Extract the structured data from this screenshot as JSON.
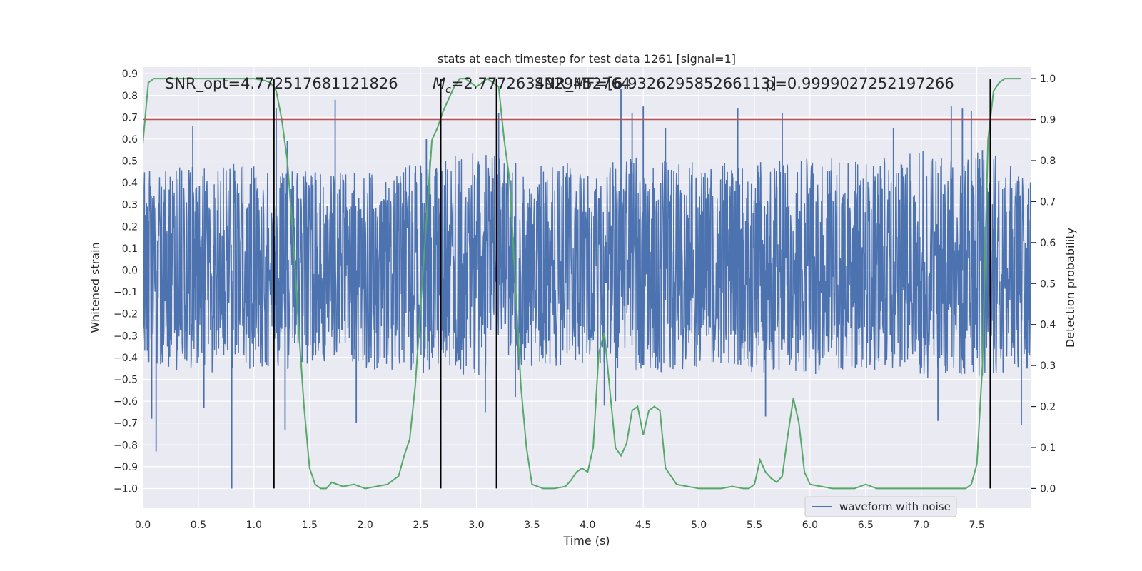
{
  "chart_data": {
    "type": "line",
    "title": "stats at each timestep for test data 1261 [signal=1]",
    "xlabel": "Time (s)",
    "ylabel": "Whitened strain",
    "y2label": "Detection probability",
    "xlim": [
      0.0,
      7.99
    ],
    "ylim": [
      -1.09,
      0.93
    ],
    "y2lim": [
      -0.048,
      1.028
    ],
    "xticks": [
      "0.0",
      "0.5",
      "1.0",
      "1.5",
      "2.0",
      "2.5",
      "3.0",
      "3.5",
      "4.0",
      "4.5",
      "5.0",
      "5.5",
      "6.0",
      "6.5",
      "7.0",
      "7.5"
    ],
    "yticks": [
      "0.9",
      "0.8",
      "0.7",
      "0.6",
      "0.5",
      "0.4",
      "0.3",
      "0.2",
      "0.1",
      "0.0",
      "−0.1",
      "−0.2",
      "−0.3",
      "−0.4",
      "−0.5",
      "−0.6",
      "−0.7",
      "−0.8",
      "−0.9",
      "−1.0"
    ],
    "y2ticks": [
      "0.0",
      "0.1",
      "0.2",
      "0.3",
      "0.4",
      "0.5",
      "0.6",
      "0.7",
      "0.8",
      "0.9",
      "1.0"
    ],
    "grid": true,
    "legend": {
      "position": "lower-right",
      "entries": [
        "waveform with noise"
      ]
    },
    "annotations": {
      "snr_opt": "SNR_opt=4.772517681121826",
      "mc_prefix": "M",
      "mc_sub": "c",
      "mc_value": "=2.7772634929452764",
      "snr_mf": "SNR_MF=[6.932629585266113]",
      "p": "p=0.9999027252197266"
    },
    "colors": {
      "background": "#eaeaf2",
      "waveform": "#4c72b0",
      "probability": "#55a868",
      "threshold": "#c44e52",
      "markers": "#000000"
    },
    "threshold_probability": 0.9,
    "vertical_markers_x": [
      1.18,
      2.68,
      3.18,
      7.62
    ],
    "waveform": {
      "name": "waveform with noise",
      "envelope_x": [
        0.0,
        0.5,
        1.0,
        1.5,
        2.0,
        2.5,
        3.0,
        3.5,
        4.0,
        4.5,
        5.0,
        5.5,
        6.0,
        6.5,
        7.0,
        7.5,
        7.99
      ],
      "envelope_upper": [
        0.45,
        0.5,
        0.48,
        0.46,
        0.45,
        0.5,
        0.55,
        0.48,
        0.5,
        0.52,
        0.5,
        0.5,
        0.52,
        0.5,
        0.55,
        0.55,
        0.48
      ],
      "envelope_lower": [
        -0.45,
        -0.48,
        -0.45,
        -0.45,
        -0.45,
        -0.48,
        -0.5,
        -0.45,
        -0.45,
        -0.48,
        -0.45,
        -0.47,
        -0.48,
        -0.45,
        -0.5,
        -0.5,
        -0.45
      ],
      "peaks": [
        [
          0.08,
          -0.68
        ],
        [
          0.12,
          -0.83
        ],
        [
          0.45,
          0.66
        ],
        [
          0.55,
          -0.63
        ],
        [
          0.8,
          -1.0
        ],
        [
          1.2,
          0.74
        ],
        [
          1.28,
          -0.73
        ],
        [
          1.3,
          0.59
        ],
        [
          1.73,
          0.78
        ],
        [
          1.92,
          -0.7
        ],
        [
          2.55,
          0.6
        ],
        [
          3.08,
          -0.65
        ],
        [
          3.2,
          0.72
        ],
        [
          3.35,
          -0.58
        ],
        [
          4.15,
          -0.62
        ],
        [
          4.25,
          -0.6
        ],
        [
          4.3,
          0.83
        ],
        [
          4.4,
          0.72
        ],
        [
          4.5,
          0.75
        ],
        [
          4.7,
          0.65
        ],
        [
          5.35,
          0.74
        ],
        [
          5.6,
          -0.67
        ],
        [
          5.75,
          0.72
        ],
        [
          6.75,
          0.65
        ],
        [
          7.15,
          -0.69
        ],
        [
          7.27,
          0.75
        ],
        [
          7.37,
          0.74
        ],
        [
          7.45,
          0.73
        ],
        [
          7.55,
          0.55
        ],
        [
          7.9,
          -0.71
        ]
      ]
    },
    "probability": {
      "name": "",
      "x": [
        0.0,
        0.05,
        0.1,
        0.15,
        0.2,
        0.3,
        0.5,
        0.8,
        1.0,
        1.1,
        1.15,
        1.2,
        1.25,
        1.3,
        1.35,
        1.4,
        1.45,
        1.5,
        1.55,
        1.6,
        1.65,
        1.7,
        1.8,
        1.9,
        2.0,
        2.1,
        2.2,
        2.3,
        2.35,
        2.4,
        2.45,
        2.5,
        2.55,
        2.6,
        2.65,
        2.7,
        2.75,
        2.8,
        2.85,
        2.9,
        2.95,
        3.0,
        3.05,
        3.1,
        3.15,
        3.2,
        3.25,
        3.3,
        3.35,
        3.4,
        3.45,
        3.5,
        3.6,
        3.7,
        3.8,
        3.85,
        3.9,
        3.95,
        4.0,
        4.05,
        4.1,
        4.15,
        4.2,
        4.25,
        4.3,
        4.35,
        4.4,
        4.45,
        4.5,
        4.55,
        4.6,
        4.65,
        4.7,
        4.8,
        4.9,
        5.0,
        5.1,
        5.2,
        5.3,
        5.4,
        5.45,
        5.5,
        5.55,
        5.6,
        5.65,
        5.7,
        5.75,
        5.8,
        5.85,
        5.9,
        5.95,
        6.0,
        6.1,
        6.2,
        6.3,
        6.4,
        6.5,
        6.6,
        6.7,
        6.8,
        6.9,
        7.0,
        7.1,
        7.2,
        7.3,
        7.4,
        7.45,
        7.5,
        7.55,
        7.6,
        7.65,
        7.7,
        7.75,
        7.8,
        7.85,
        7.9
      ],
      "y": [
        0.84,
        0.99,
        1.0,
        1.0,
        1.0,
        1.0,
        1.0,
        1.0,
        1.0,
        0.995,
        0.99,
        0.97,
        0.9,
        0.8,
        0.62,
        0.4,
        0.2,
        0.05,
        0.01,
        0.0,
        0.0,
        0.015,
        0.005,
        0.01,
        0.0,
        0.005,
        0.01,
        0.03,
        0.08,
        0.12,
        0.25,
        0.45,
        0.65,
        0.85,
        0.88,
        0.92,
        0.95,
        0.98,
        1.0,
        1.0,
        0.99,
        0.98,
        0.99,
        1.0,
        0.99,
        0.98,
        0.85,
        0.75,
        0.5,
        0.25,
        0.1,
        0.01,
        0.0,
        0.0,
        0.005,
        0.02,
        0.04,
        0.05,
        0.04,
        0.1,
        0.33,
        0.38,
        0.24,
        0.1,
        0.08,
        0.11,
        0.19,
        0.2,
        0.13,
        0.19,
        0.2,
        0.19,
        0.05,
        0.01,
        0.005,
        0.0,
        0.0,
        0.0,
        0.005,
        0.0,
        0.0,
        0.01,
        0.07,
        0.04,
        0.025,
        0.015,
        0.03,
        0.13,
        0.22,
        0.16,
        0.04,
        0.01,
        0.005,
        0.0,
        0.0,
        0.0,
        0.01,
        0.0,
        0.0,
        0.0,
        0.0,
        0.0,
        0.0,
        0.0,
        0.0,
        0.0,
        0.01,
        0.06,
        0.3,
        0.85,
        0.97,
        0.99,
        1.0,
        1.0,
        1.0,
        1.0
      ]
    }
  }
}
